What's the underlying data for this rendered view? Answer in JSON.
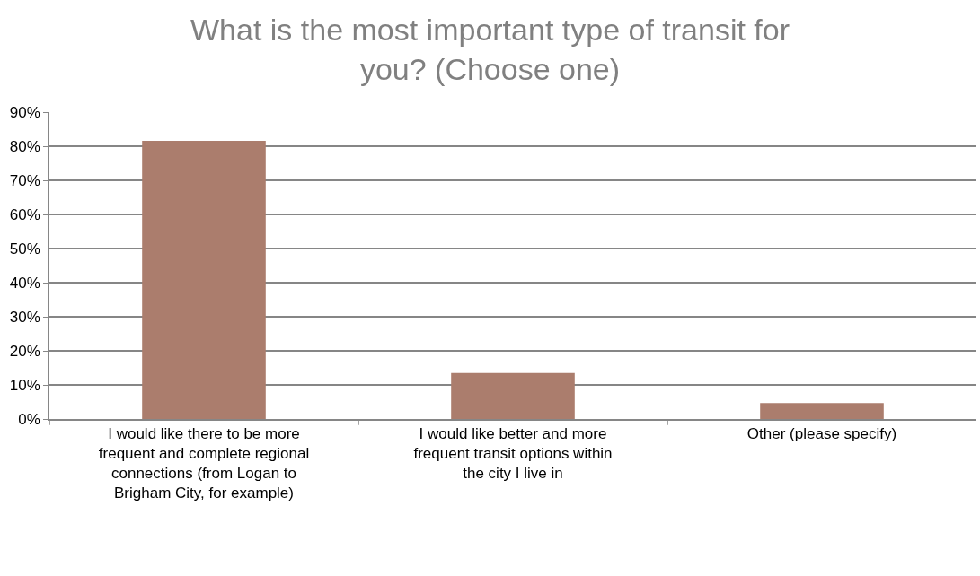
{
  "chart_data": {
    "type": "bar",
    "title": "What is the most important type of transit for you? (Choose one)",
    "categories": [
      "I would like there to be more frequent and complete regional connections (from Logan to Brigham City, for example)",
      "I would like better and more frequent transit options within the city I live in",
      "Other (please specify)"
    ],
    "values": [
      81.6,
      13.5,
      4.7
    ],
    "color": "#ab7d6d",
    "ylim": [
      0,
      90
    ],
    "yticks": [
      {
        "value": 0,
        "label": "0%"
      },
      {
        "value": 10,
        "label": "10%"
      },
      {
        "value": 20,
        "label": "20%"
      },
      {
        "value": 30,
        "label": "30%"
      },
      {
        "value": 40,
        "label": "40%"
      },
      {
        "value": 50,
        "label": "50%"
      },
      {
        "value": 60,
        "label": "60%"
      },
      {
        "value": 70,
        "label": "70%"
      },
      {
        "value": 80,
        "label": "80%"
      },
      {
        "value": 90,
        "label": "90%"
      }
    ],
    "grid": "y"
  }
}
